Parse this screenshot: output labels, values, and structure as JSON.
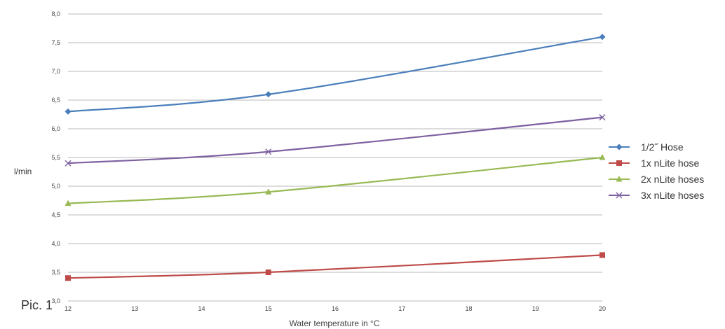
{
  "caption": "Pic. 1",
  "chart_data": {
    "type": "line",
    "x": [
      12,
      15,
      20
    ],
    "xticks": [
      "12",
      "13",
      "14",
      "15",
      "16",
      "17",
      "18",
      "19",
      "20"
    ],
    "xlim": [
      12,
      20
    ],
    "yticks": [
      "3,0",
      "3,5",
      "4,0",
      "4,5",
      "5,0",
      "5,5",
      "6,0",
      "6,5",
      "7,0",
      "7,5",
      "8,0"
    ],
    "ylim": [
      3.0,
      8.0
    ],
    "xlabel": "Water temperature in °C",
    "ylabel": "l/min",
    "grid": "horizontal",
    "legend_position": "right",
    "series": [
      {
        "name": "1/2˝ Hose",
        "values": [
          6.3,
          6.6,
          7.6
        ],
        "color": "#4a7ebb",
        "marker": "diamond"
      },
      {
        "name": "1x nLite hose",
        "values": [
          3.4,
          3.5,
          3.8
        ],
        "color": "#be4b48",
        "marker": "square"
      },
      {
        "name": "2x nLite hoses",
        "values": [
          4.7,
          4.9,
          5.5
        ],
        "color": "#98b954",
        "marker": "triangle"
      },
      {
        "name": "3x nLite hoses",
        "values": [
          5.4,
          5.6,
          6.2
        ],
        "color": "#7d60a0",
        "marker": "x"
      }
    ]
  }
}
